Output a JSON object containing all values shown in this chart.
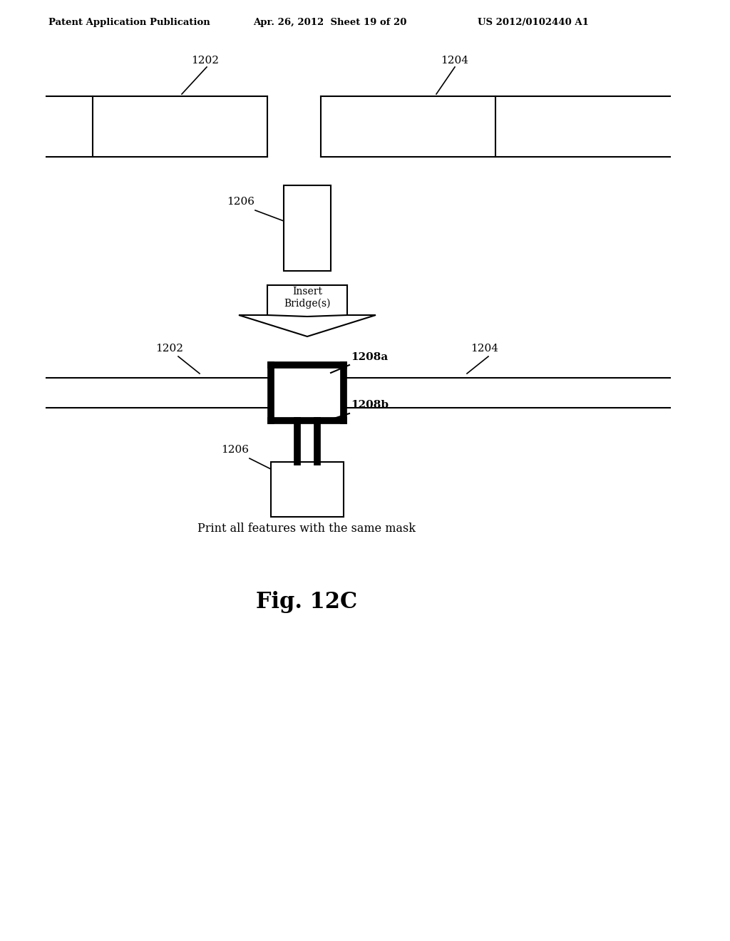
{
  "background_color": "#ffffff",
  "header_left": "Patent Application Publication",
  "header_center": "Apr. 26, 2012  Sheet 19 of 20",
  "header_right": "US 2012/0102440 A1",
  "fig_label": "Fig. 12C",
  "caption": "Print all features with the same mask",
  "label_1202_top": "1202",
  "label_1204_top": "1204",
  "label_1206_mid": "1206",
  "label_1202_bot": "1202",
  "label_1204_bot": "1204",
  "label_1208a": "1208a",
  "label_1208b": "1208b",
  "label_1206_bot": "1206"
}
